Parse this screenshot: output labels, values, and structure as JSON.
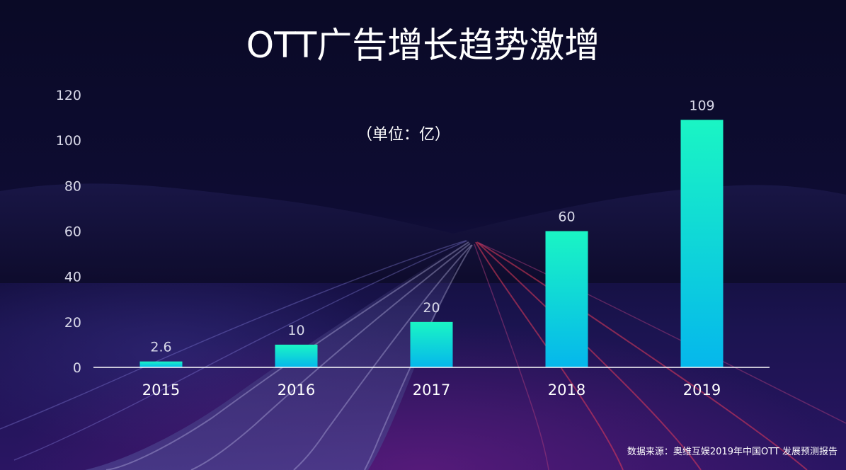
{
  "slide": {
    "title": "OTT广告增长趋势激增",
    "unit_note": "（单位：亿）",
    "source": "数据来源：奥维互娱2019年中国OTT 发展预测报告"
  },
  "colors": {
    "bar_top": "#1af5c4",
    "bar_bottom": "#05b7ec",
    "text": "#ffffff",
    "axis_text": "#d8d8e8"
  },
  "chart_data": {
    "type": "bar",
    "categories": [
      "2015",
      "2016",
      "2017",
      "2018",
      "2019"
    ],
    "values": [
      2.6,
      10,
      20,
      60,
      109
    ],
    "data_labels": [
      "2.6",
      "10",
      "20",
      "60",
      "109"
    ],
    "title": "OTT广告增长趋势激增",
    "ylabel": "",
    "xlabel": "",
    "ylim": [
      0,
      120
    ],
    "yticks": [
      0,
      20,
      40,
      60,
      80,
      100,
      120
    ],
    "grid": false,
    "legend": "none"
  }
}
